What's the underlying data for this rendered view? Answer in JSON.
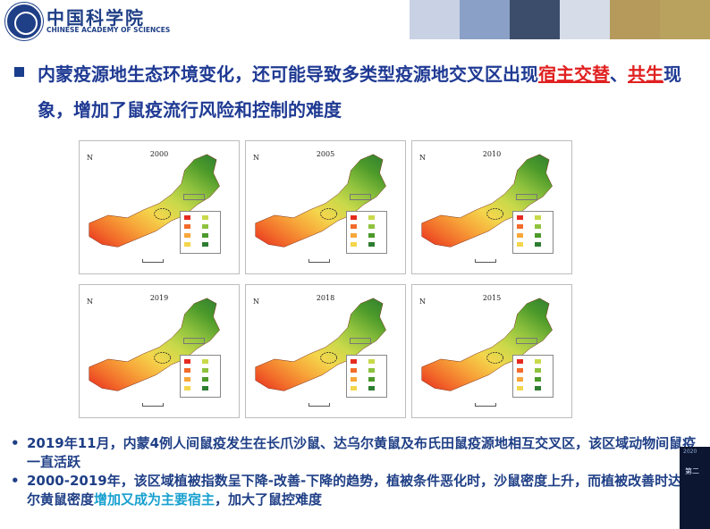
{
  "header": {
    "logo_cn": "中国科学院",
    "logo_en": "CHINESE ACADEMY OF SCIENCES",
    "banner_colors": [
      "#c9d2e4",
      "#8aa0c6",
      "#3c4d6b",
      "#d6dde8",
      "#b59a5c",
      "#b9a15e"
    ]
  },
  "title": {
    "part1": "内蒙疫源地生态环境变化，还可能导致多类型疫源地交叉区出现",
    "red1": "宿主交替",
    "sep": "、",
    "red2": "共生",
    "part2": "现象，增加了鼠疫流行风险和控制的难度"
  },
  "maps": [
    {
      "year": "2000"
    },
    {
      "year": "2005"
    },
    {
      "year": "2010"
    },
    {
      "year": "2019"
    },
    {
      "year": "2018"
    },
    {
      "year": "2015"
    }
  ],
  "map_north_label": "N",
  "map_palette": [
    "#e62a1f",
    "#f26b2a",
    "#f7a73a",
    "#f4d64c",
    "#c9d94a",
    "#8fc23e",
    "#4c9a2a",
    "#2e7d32"
  ],
  "bullets": [
    {
      "dot": "•",
      "text_a": "2019年11月，内蒙4例人间鼠疫发生在长爪沙鼠、达乌尔黄鼠及布氏田鼠疫源地相互交叉区，该区域动物间鼠疫一直活跃",
      "text_b": ""
    },
    {
      "dot": "•",
      "text_a": "2000-2019年，该区域植被指数呈下降-改善-下降的趋势，植被条件恶化时，沙鼠密度上升，而植被改善时达乌尔黄鼠密度",
      "highlight": "增加又成为主要宿主",
      "text_b": "，加大了鼠控难度"
    }
  ],
  "video": {
    "label_top": "2020",
    "label_mid": "第二"
  }
}
